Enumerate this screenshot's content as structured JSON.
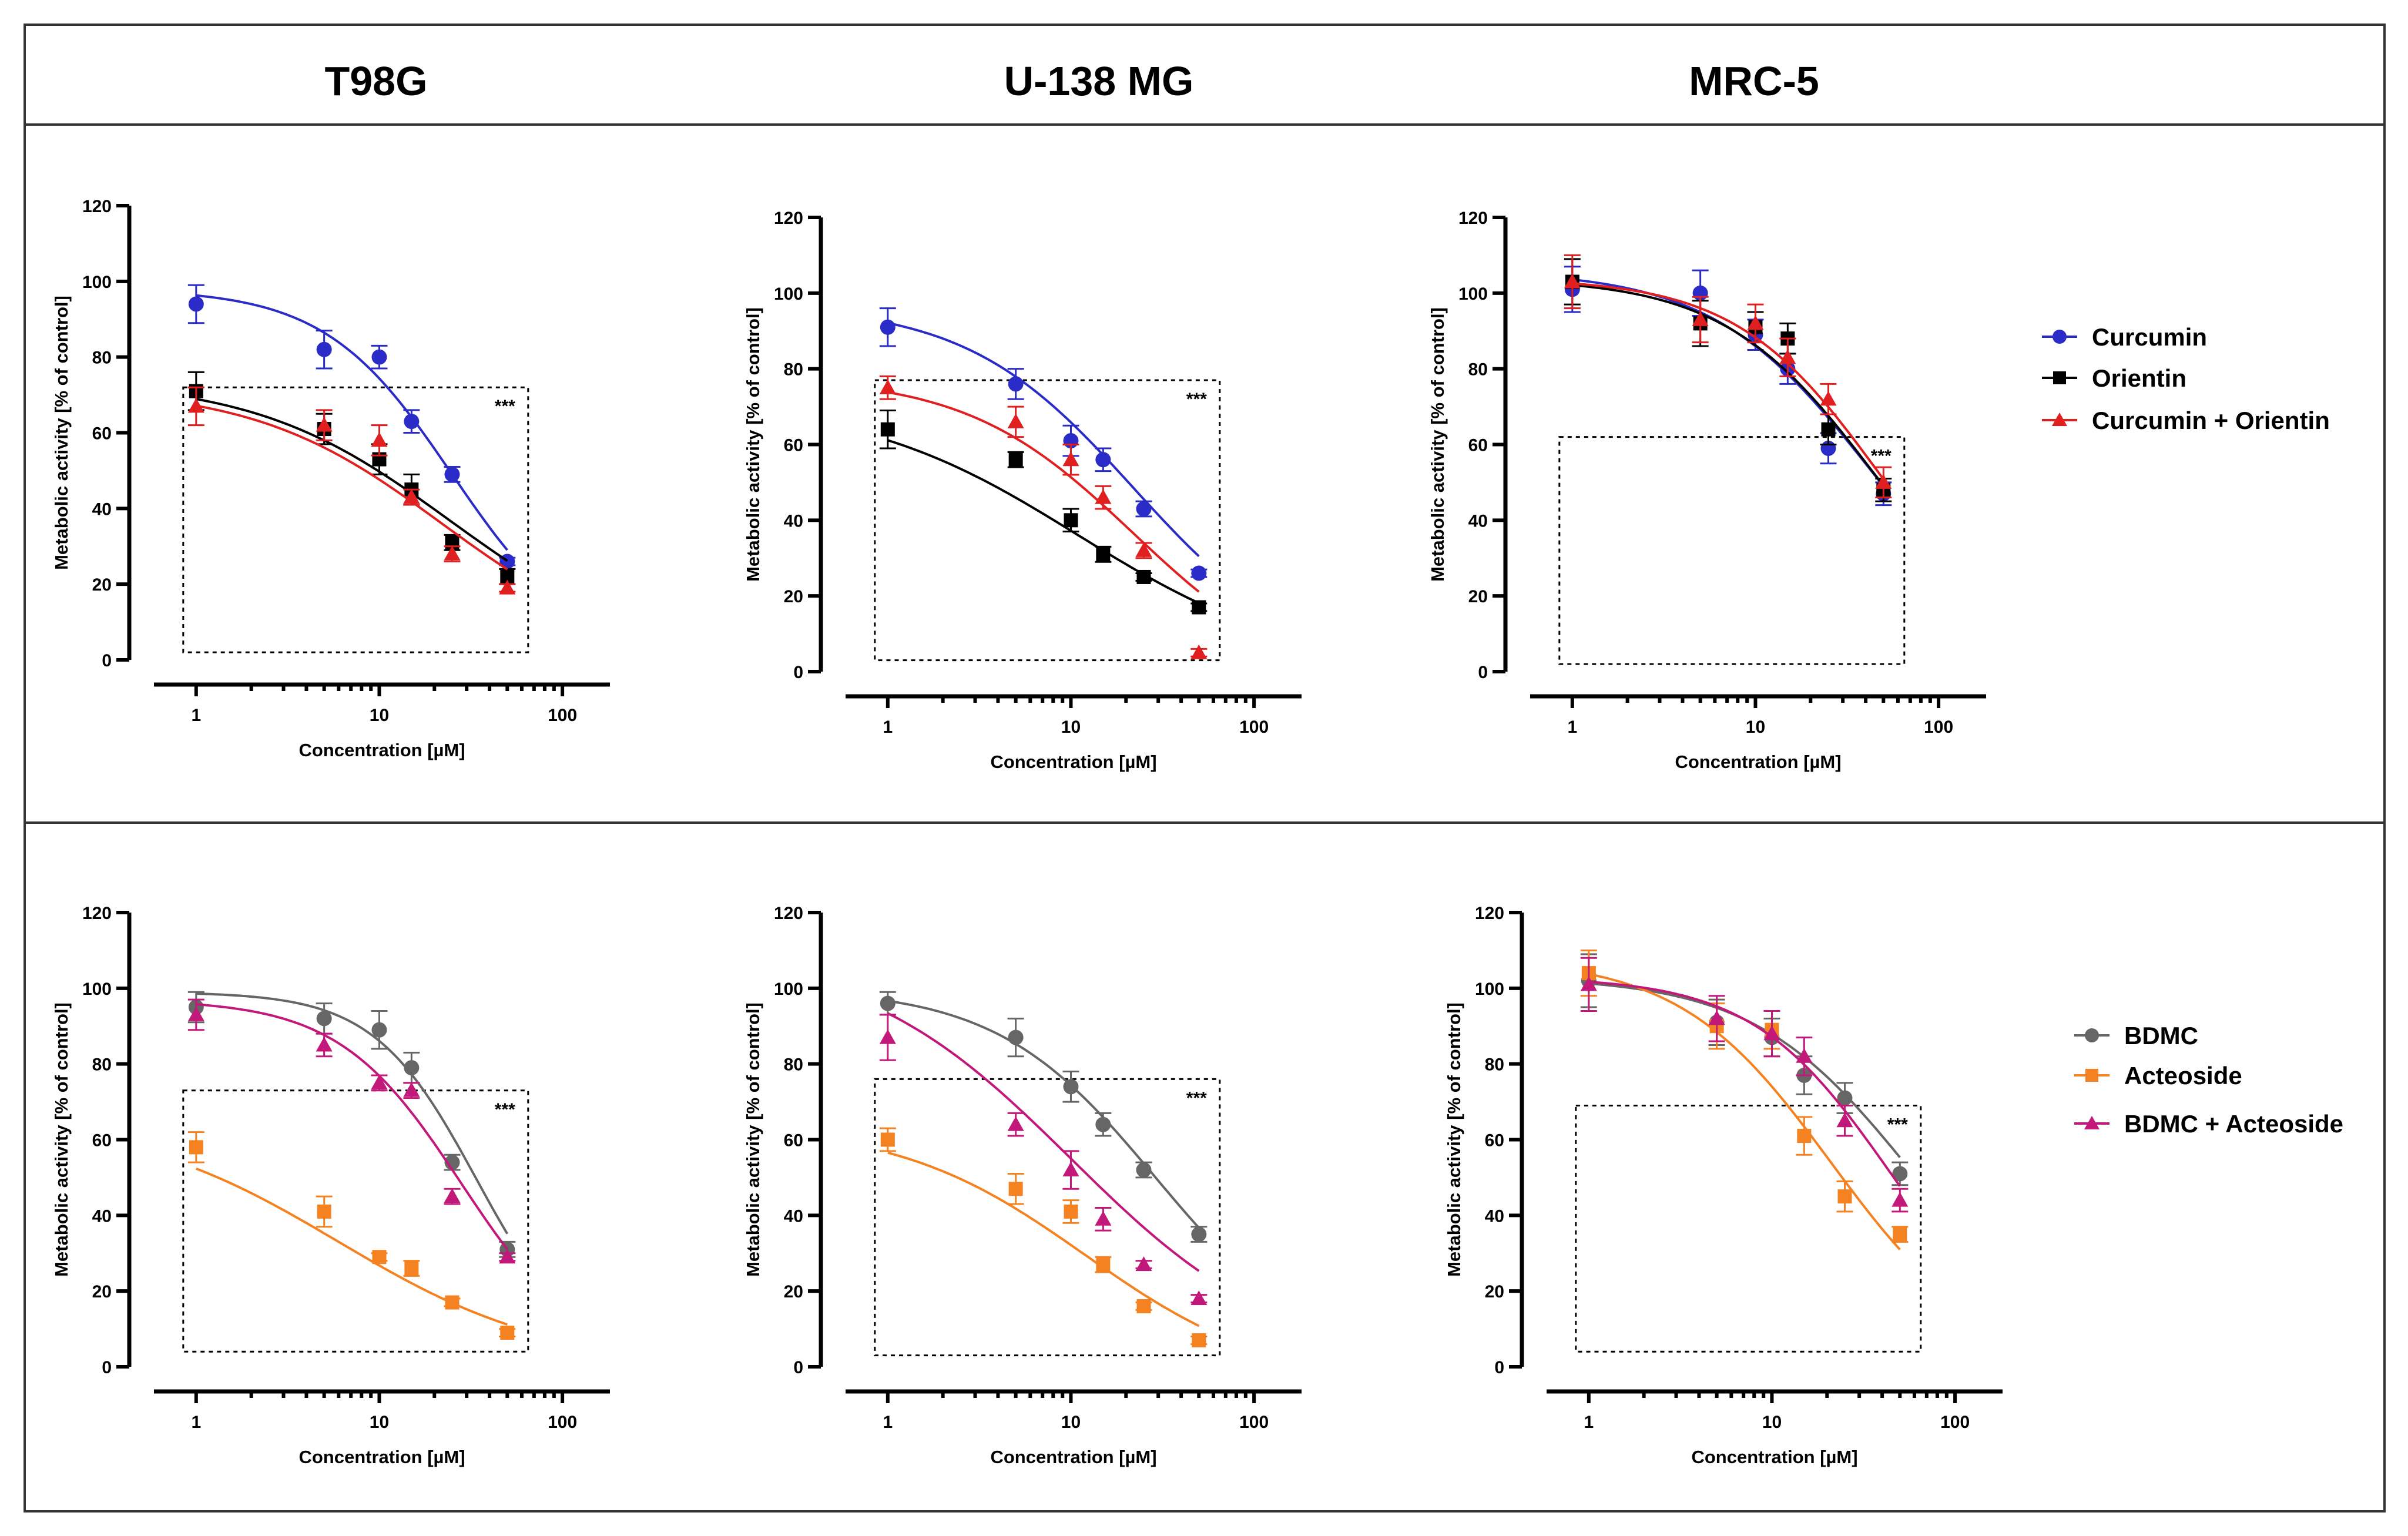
{
  "figure": {
    "column_titles": [
      "T98G",
      "U-138 MG",
      "MRC-5"
    ]
  },
  "legends": [
    {
      "row": 0,
      "entries": [
        {
          "label": "Curcumin",
          "color": "#2b2bc8",
          "marker": "circle"
        },
        {
          "label": "Orientin",
          "color": "#000000",
          "marker": "square"
        },
        {
          "label": "Curcumin + Orientin",
          "color": "#e02020",
          "marker": "triangle"
        }
      ]
    },
    {
      "row": 1,
      "entries": [
        {
          "label": "BDMC",
          "color": "#666666",
          "marker": "circle"
        },
        {
          "label": "Acteoside",
          "color": "#f58220",
          "marker": "square"
        },
        {
          "label": "BDMC + Acteoside",
          "color": "#c2187a",
          "marker": "triangle"
        }
      ]
    }
  ],
  "chart_data": [
    {
      "type": "scatter",
      "row": 0,
      "col": 0,
      "xlabel": "Concentration [µM]",
      "ylabel": "Metabolic activity [% of control]",
      "xscale": "log",
      "xlim": [
        0.5,
        150
      ],
      "ylim": [
        0,
        120
      ],
      "xticks": [
        1,
        10,
        100
      ],
      "xtick_labels": [
        "1",
        "10",
        "100"
      ],
      "yticks": [
        0,
        20,
        40,
        60,
        80,
        100,
        120
      ],
      "ytick_labels": [
        "0",
        "20",
        "40",
        "60",
        "80",
        "100",
        "120"
      ],
      "significance": {
        "label": "***",
        "box_x": [
          0.85,
          65
        ],
        "box_y": [
          2,
          72
        ]
      },
      "series": [
        {
          "name": "Curcumin",
          "color": "#2b2bc8",
          "marker": "circle",
          "x": [
            1,
            5,
            10,
            15,
            25,
            50
          ],
          "y": [
            94,
            82,
            80,
            63,
            49,
            26
          ],
          "err": [
            5,
            5,
            3,
            3,
            2,
            1
          ],
          "fit": {
            "top": 98,
            "bottom": 0,
            "ec50": 25,
            "hill": 1.25
          }
        },
        {
          "name": "Orientin",
          "color": "#000000",
          "marker": "square",
          "x": [
            1,
            5,
            10,
            15,
            25,
            50
          ],
          "y": [
            71,
            61,
            53,
            45,
            31,
            22
          ],
          "err": [
            5,
            4,
            4,
            4,
            2,
            2
          ],
          "fit": {
            "top": 74,
            "bottom": 0,
            "ec50": 24,
            "hill": 0.82
          }
        },
        {
          "name": "Curcumin + Orientin",
          "color": "#e02020",
          "marker": "triangle",
          "x": [
            1,
            5,
            10,
            15,
            25,
            50
          ],
          "y": [
            67,
            62,
            58,
            43,
            28,
            19
          ],
          "err": [
            5,
            4,
            4,
            2,
            2,
            1
          ],
          "fit": {
            "top": 72,
            "bottom": 0,
            "ec50": 22,
            "hill": 0.85
          }
        }
      ]
    },
    {
      "type": "scatter",
      "row": 0,
      "col": 1,
      "xlabel": "Concentration [µM]",
      "ylabel": "Metabolic activity [% of control]",
      "xscale": "log",
      "xlim": [
        0.5,
        150
      ],
      "ylim": [
        0,
        120
      ],
      "xticks": [
        1,
        10,
        100
      ],
      "xtick_labels": [
        "1",
        "10",
        "100"
      ],
      "yticks": [
        0,
        20,
        40,
        60,
        80,
        100,
        120
      ],
      "ytick_labels": [
        "0",
        "20",
        "40",
        "60",
        "80",
        "100",
        "120"
      ],
      "significance": {
        "label": "***",
        "box_x": [
          0.85,
          65
        ],
        "box_y": [
          3,
          77
        ]
      },
      "series": [
        {
          "name": "Curcumin",
          "color": "#2b2bc8",
          "marker": "circle",
          "x": [
            1,
            5,
            10,
            15,
            25,
            50
          ],
          "y": [
            91,
            76,
            61,
            56,
            43,
            26
          ],
          "err": [
            5,
            4,
            4,
            3,
            2,
            1
          ],
          "fit": {
            "top": 97,
            "bottom": 0,
            "ec50": 22,
            "hill": 0.95
          }
        },
        {
          "name": "Orientin",
          "color": "#000000",
          "marker": "square",
          "x": [
            1,
            5,
            10,
            15,
            25,
            50
          ],
          "y": [
            64,
            56,
            40,
            31,
            25,
            17
          ],
          "err": [
            5,
            2,
            3,
            2,
            1,
            1
          ],
          "fit": {
            "top": 72,
            "bottom": 0,
            "ec50": 11,
            "hill": 0.72
          }
        },
        {
          "name": "Curcumin + Orientin",
          "color": "#e02020",
          "marker": "triangle",
          "x": [
            1,
            5,
            10,
            15,
            25,
            50
          ],
          "y": [
            75,
            66,
            56,
            46,
            32,
            5
          ],
          "err": [
            3,
            4,
            4,
            3,
            2,
            1
          ],
          "fit": {
            "top": 78,
            "bottom": -5,
            "ec50": 22,
            "hill": 0.95
          }
        }
      ]
    },
    {
      "type": "scatter",
      "row": 0,
      "col": 2,
      "xlabel": "Concentration [µM]",
      "ylabel": "Metabolic activity [% of control]",
      "xscale": "log",
      "xlim": [
        0.5,
        150
      ],
      "ylim": [
        0,
        120
      ],
      "xticks": [
        1,
        10,
        100
      ],
      "xtick_labels": [
        "1",
        "10",
        "100"
      ],
      "yticks": [
        0,
        20,
        40,
        60,
        80,
        100,
        120
      ],
      "ytick_labels": [
        "0",
        "20",
        "40",
        "60",
        "80",
        "100",
        "120"
      ],
      "significance": {
        "label": "***",
        "box_x": [
          0.85,
          65
        ],
        "box_y": [
          2,
          62
        ]
      },
      "series": [
        {
          "name": "Curcumin",
          "color": "#2b2bc8",
          "marker": "circle",
          "x": [
            1,
            5,
            10,
            15,
            25,
            50
          ],
          "y": [
            101,
            100,
            89,
            80,
            59,
            47
          ],
          "err": [
            6,
            6,
            4,
            4,
            4,
            3
          ],
          "fit": {
            "top": 106,
            "bottom": 0,
            "ec50": 43,
            "hill": 1.0
          }
        },
        {
          "name": "Orientin",
          "color": "#000000",
          "marker": "square",
          "x": [
            1,
            5,
            10,
            15,
            25,
            50
          ],
          "y": [
            103,
            92,
            91,
            88,
            64,
            48
          ],
          "err": [
            6,
            6,
            4,
            4,
            4,
            3
          ],
          "fit": {
            "top": 104,
            "bottom": 0,
            "ec50": 45,
            "hill": 1.05
          }
        },
        {
          "name": "Curcumin + Orientin",
          "color": "#e02020",
          "marker": "triangle",
          "x": [
            1,
            5,
            10,
            15,
            25,
            50
          ],
          "y": [
            103,
            93,
            92,
            83,
            72,
            50
          ],
          "err": [
            7,
            6,
            5,
            5,
            4,
            4
          ],
          "fit": {
            "top": 104,
            "bottom": 0,
            "ec50": 48,
            "hill": 1.1
          }
        }
      ]
    },
    {
      "type": "scatter",
      "row": 1,
      "col": 0,
      "xlabel": "Concentration [µM]",
      "ylabel": "Metabolic activity [% of control]",
      "xscale": "log",
      "xlim": [
        0.5,
        150
      ],
      "ylim": [
        0,
        120
      ],
      "xticks": [
        1,
        10,
        100
      ],
      "xtick_labels": [
        "1",
        "10",
        "100"
      ],
      "yticks": [
        0,
        20,
        40,
        60,
        80,
        100,
        120
      ],
      "ytick_labels": [
        "0",
        "20",
        "40",
        "60",
        "80",
        "100",
        "120"
      ],
      "significance": {
        "label": "***",
        "box_x": [
          0.85,
          65
        ],
        "box_y": [
          4,
          73
        ]
      },
      "series": [
        {
          "name": "BDMC",
          "color": "#666666",
          "marker": "circle",
          "x": [
            1,
            5,
            10,
            15,
            25,
            50
          ],
          "y": [
            95,
            92,
            89,
            79,
            54,
            31
          ],
          "err": [
            4,
            4,
            5,
            4,
            2,
            2
          ],
          "fit": {
            "top": 99,
            "bottom": 0,
            "ec50": 34,
            "hill": 1.55
          }
        },
        {
          "name": "Acteoside",
          "color": "#f58220",
          "marker": "square",
          "x": [
            1,
            5,
            10,
            15,
            25,
            50
          ],
          "y": [
            58,
            41,
            29,
            26,
            17,
            9
          ],
          "err": [
            4,
            4,
            1,
            2,
            1,
            1
          ],
          "fit": {
            "top": 66,
            "bottom": 0,
            "ec50": 6,
            "hill": 0.75
          }
        },
        {
          "name": "BDMC + Acteoside",
          "color": "#c2187a",
          "marker": "triangle",
          "x": [
            1,
            5,
            10,
            15,
            25,
            50
          ],
          "y": [
            93,
            85,
            75,
            73,
            45,
            29
          ],
          "err": [
            4,
            3,
            2,
            2,
            2,
            1
          ],
          "fit": {
            "top": 97,
            "bottom": 0,
            "ec50": 28,
            "hill": 1.3
          }
        }
      ]
    },
    {
      "type": "scatter",
      "row": 1,
      "col": 1,
      "xlabel": "Concentration [µM]",
      "ylabel": "Metabolic activity [% of control]",
      "xscale": "log",
      "xlim": [
        0.5,
        150
      ],
      "ylim": [
        0,
        120
      ],
      "xticks": [
        1,
        10,
        100
      ],
      "xtick_labels": [
        "1",
        "10",
        "100"
      ],
      "yticks": [
        0,
        20,
        40,
        60,
        80,
        100,
        120
      ],
      "ytick_labels": [
        "0",
        "20",
        "40",
        "60",
        "80",
        "100",
        "120"
      ],
      "significance": {
        "label": "***",
        "box_x": [
          0.85,
          65
        ],
        "box_y": [
          3,
          76
        ]
      },
      "series": [
        {
          "name": "BDMC",
          "color": "#666666",
          "marker": "circle",
          "x": [
            1,
            5,
            10,
            15,
            25,
            50
          ],
          "y": [
            96,
            87,
            74,
            64,
            52,
            35
          ],
          "err": [
            3,
            5,
            4,
            3,
            2,
            2
          ],
          "fit": {
            "top": 100,
            "bottom": 0,
            "ec50": 29,
            "hill": 1.0
          }
        },
        {
          "name": "Acteoside",
          "color": "#f58220",
          "marker": "square",
          "x": [
            1,
            5,
            10,
            15,
            25,
            50
          ],
          "y": [
            60,
            47,
            41,
            27,
            16,
            7
          ],
          "err": [
            3,
            4,
            3,
            2,
            1,
            1
          ],
          "fit": {
            "top": 64,
            "bottom": -5,
            "ec50": 12,
            "hill": 0.85
          }
        },
        {
          "name": "BDMC + Acteoside",
          "color": "#c2187a",
          "marker": "triangle",
          "x": [
            1,
            5,
            10,
            15,
            25,
            50
          ],
          "y": [
            87,
            64,
            52,
            39,
            27,
            18
          ],
          "err": [
            6,
            3,
            5,
            3,
            1,
            1
          ],
          "fit": {
            "top": 110,
            "bottom": 0,
            "ec50": 10,
            "hill": 0.75
          }
        }
      ]
    },
    {
      "type": "scatter",
      "row": 1,
      "col": 2,
      "xlabel": "Concentration [µM]",
      "ylabel": "Metabolic activity [% of control]",
      "xscale": "log",
      "xlim": [
        0.5,
        150
      ],
      "ylim": [
        0,
        120
      ],
      "xticks": [
        1,
        10,
        100
      ],
      "xtick_labels": [
        "1",
        "10",
        "100"
      ],
      "yticks": [
        0,
        20,
        40,
        60,
        80,
        100,
        120
      ],
      "ytick_labels": [
        "0",
        "20",
        "40",
        "60",
        "80",
        "100",
        "120"
      ],
      "significance": {
        "label": "***",
        "box_x": [
          0.85,
          65
        ],
        "box_y": [
          4,
          69
        ]
      },
      "series": [
        {
          "name": "BDMC",
          "color": "#666666",
          "marker": "circle",
          "x": [
            1,
            5,
            10,
            15,
            25,
            50
          ],
          "y": [
            102,
            91,
            87,
            77,
            71,
            51
          ],
          "err": [
            7,
            6,
            5,
            5,
            4,
            3
          ],
          "fit": {
            "top": 103,
            "bottom": 0,
            "ec50": 58,
            "hill": 1.0
          }
        },
        {
          "name": "Acteoside",
          "color": "#f58220",
          "marker": "square",
          "x": [
            1,
            5,
            10,
            15,
            25,
            50
          ],
          "y": [
            104,
            90,
            89,
            61,
            45,
            35
          ],
          "err": [
            6,
            6,
            5,
            5,
            4,
            2
          ],
          "fit": {
            "top": 108,
            "bottom": 0,
            "ec50": 21,
            "hill": 1.05
          }
        },
        {
          "name": "BDMC + Acteoside",
          "color": "#c2187a",
          "marker": "triangle",
          "x": [
            1,
            5,
            10,
            15,
            25,
            50
          ],
          "y": [
            101,
            92,
            88,
            82,
            65,
            44
          ],
          "err": [
            7,
            6,
            6,
            5,
            4,
            3
          ],
          "fit": {
            "top": 103,
            "bottom": 0,
            "ec50": 44,
            "hill": 1.15
          }
        }
      ]
    }
  ]
}
